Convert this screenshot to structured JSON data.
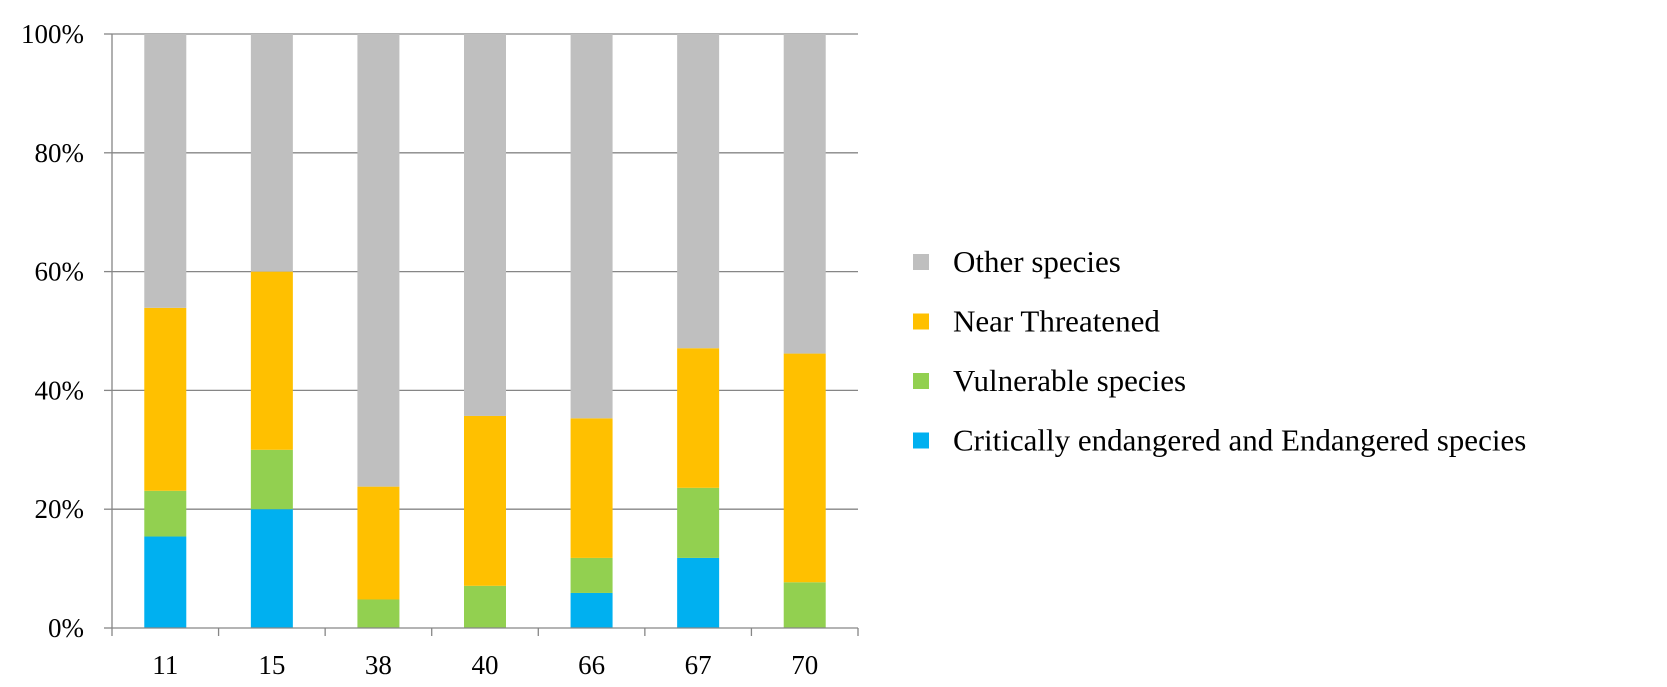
{
  "chart_data": {
    "type": "bar",
    "stacked": true,
    "normalized": true,
    "title": "",
    "xlabel": "",
    "ylabel": "",
    "ylim": [
      0,
      100
    ],
    "yticks": [
      "0%",
      "20%",
      "40%",
      "60%",
      "80%",
      "100%"
    ],
    "categories": [
      "11",
      "15",
      "38",
      "40",
      "66",
      "67",
      "70"
    ],
    "grid": true,
    "legend_position": "right",
    "series": [
      {
        "name": "Critically endangered and Endangered species",
        "color": "#00b0f0",
        "values": [
          15.4,
          20.0,
          0,
          0,
          5.9,
          11.8,
          0
        ]
      },
      {
        "name": "Vulnerable species",
        "color": "#92d050",
        "values": [
          7.7,
          10.0,
          4.8,
          7.1,
          5.9,
          11.8,
          7.7
        ]
      },
      {
        "name": "Near Threatened",
        "color": "#ffc000",
        "values": [
          30.8,
          30.0,
          19.0,
          28.6,
          23.5,
          23.5,
          38.5
        ]
      },
      {
        "name": "Other species",
        "color": "#bfbfbf",
        "values": [
          46.1,
          40.0,
          76.2,
          64.3,
          64.7,
          52.9,
          53.8
        ]
      }
    ],
    "legend_order": [
      "Other species",
      "Near Threatened",
      "Vulnerable species",
      "Critically endangered and Endangered species"
    ]
  }
}
